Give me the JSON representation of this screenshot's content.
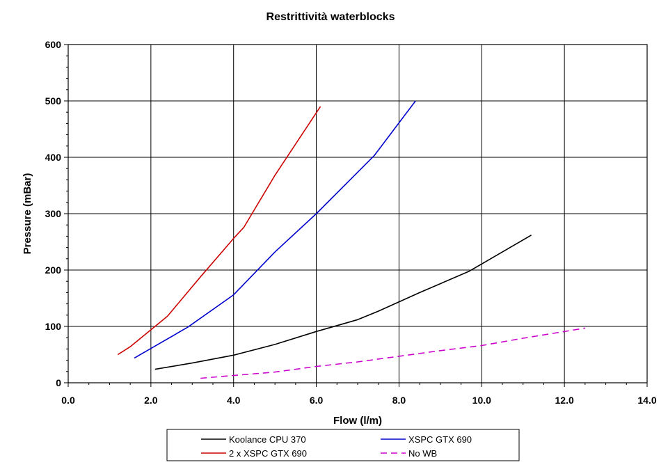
{
  "chart_data": {
    "type": "line",
    "title": "Restrittività waterblocks",
    "xlabel": "Flow (l/m)",
    "ylabel": "Pressure (mBar)",
    "xlim": [
      0,
      14
    ],
    "ylim": [
      0,
      600
    ],
    "xticks": [
      "0.0",
      "2.0",
      "4.0",
      "6.0",
      "8.0",
      "10.0",
      "12.0",
      "14.0"
    ],
    "yticks": [
      "0",
      "100",
      "200",
      "300",
      "400",
      "500",
      "600"
    ],
    "grid": true,
    "legend_position": "bottom",
    "series": [
      {
        "name": "Koolance CPU 370",
        "color": "#000000",
        "dash": "solid",
        "x": [
          2.1,
          3.0,
          4.0,
          5.0,
          6.0,
          7.0,
          7.5,
          8.5,
          9.7,
          11.2
        ],
        "y": [
          24,
          35,
          49,
          68,
          91,
          112,
          127,
          160,
          198,
          262
        ]
      },
      {
        "name": "XSPC GTX 690",
        "color": "#0000cc",
        "dash": "solid",
        "x": [
          1.6,
          2.9,
          4.0,
          5.0,
          6.0,
          7.4,
          8.4
        ],
        "y": [
          44,
          99,
          156,
          232,
          300,
          403,
          500
        ]
      },
      {
        "name": "2 x XSPC GTX 690",
        "color": "#cc0000",
        "dash": "solid",
        "x": [
          1.2,
          1.5,
          2.4,
          3.2,
          4.0,
          4.25,
          5.0,
          6.1
        ],
        "y": [
          50,
          64,
          118,
          188,
          256,
          276,
          368,
          490
        ]
      },
      {
        "name": "No WB",
        "color": "#cc00cc",
        "dash": "dashed",
        "x": [
          3.2,
          4.0,
          5.0,
          6.0,
          7.0,
          8.0,
          9.0,
          10.0,
          11.0,
          12.0,
          12.5
        ],
        "y": [
          8,
          13,
          19,
          29,
          37,
          47,
          57,
          66,
          79,
          91,
          97
        ]
      }
    ]
  }
}
